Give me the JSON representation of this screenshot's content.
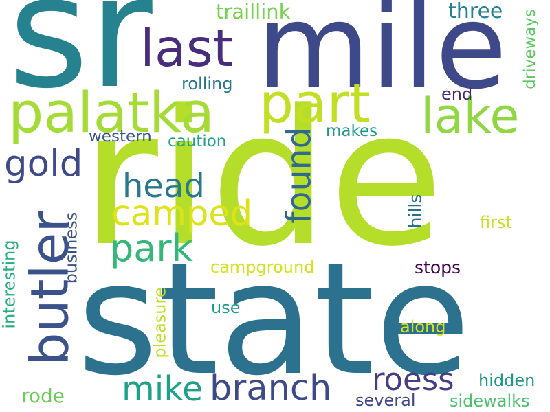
{
  "words": [
    {
      "text": "ride",
      "color": "#b5de2b",
      "vertical": false
    },
    {
      "text": "state",
      "color": "#2c728e",
      "vertical": false
    },
    {
      "text": "sr",
      "color": "#26828e",
      "vertical": false
    },
    {
      "text": "mile",
      "color": "#3e4989",
      "vertical": false
    },
    {
      "text": "last",
      "color": "#472d7b",
      "vertical": false
    },
    {
      "text": "palatka",
      "color": "#a5db36",
      "vertical": false
    },
    {
      "text": "part",
      "color": "#c2df23",
      "vertical": false
    },
    {
      "text": "lake",
      "color": "#90d743",
      "vertical": false
    },
    {
      "text": "butler",
      "color": "#3b528b",
      "vertical": true
    },
    {
      "text": "gold",
      "color": "#3e4a89",
      "vertical": false
    },
    {
      "text": "head",
      "color": "#2a788e",
      "vertical": false
    },
    {
      "text": "camped",
      "color": "#dde318",
      "vertical": false
    },
    {
      "text": "found",
      "color": "#31688e",
      "vertical": true
    },
    {
      "text": "park",
      "color": "#35b779",
      "vertical": false
    },
    {
      "text": "mike",
      "color": "#1fa187",
      "vertical": false
    },
    {
      "text": "branch",
      "color": "#3e4989",
      "vertical": false
    },
    {
      "text": "roess",
      "color": "#433e85",
      "vertical": false
    },
    {
      "text": "traillink",
      "color": "#7ad151",
      "vertical": false
    },
    {
      "text": "three",
      "color": "#26828e",
      "vertical": false
    },
    {
      "text": "driveways",
      "color": "#5ec962",
      "vertical": true
    },
    {
      "text": "rolling",
      "color": "#2a788e",
      "vertical": false
    },
    {
      "text": "end",
      "color": "#482878",
      "vertical": false
    },
    {
      "text": "makes",
      "color": "#1f9a8a",
      "vertical": false
    },
    {
      "text": "western",
      "color": "#39568c",
      "vertical": false
    },
    {
      "text": "caution",
      "color": "#20a386",
      "vertical": false
    },
    {
      "text": "business",
      "color": "#3b528b",
      "vertical": true
    },
    {
      "text": "interesting",
      "color": "#27ad81",
      "vertical": true
    },
    {
      "text": "hills",
      "color": "#2d708e",
      "vertical": true
    },
    {
      "text": "first",
      "color": "#c8e020",
      "vertical": false
    },
    {
      "text": "campground",
      "color": "#d2e21b",
      "vertical": false
    },
    {
      "text": "stops",
      "color": "#440154",
      "vertical": false
    },
    {
      "text": "pleasure",
      "color": "#c0df25",
      "vertical": true
    },
    {
      "text": "use",
      "color": "#1e9c89",
      "vertical": false
    },
    {
      "text": "along",
      "color": "#d8e219",
      "vertical": false
    },
    {
      "text": "hidden",
      "color": "#1f968b",
      "vertical": false
    },
    {
      "text": "rode",
      "color": "#6ccd5a",
      "vertical": false
    },
    {
      "text": "several",
      "color": "#404688",
      "vertical": false
    },
    {
      "text": "sidewalks",
      "color": "#4ac16d",
      "vertical": false
    }
  ]
}
